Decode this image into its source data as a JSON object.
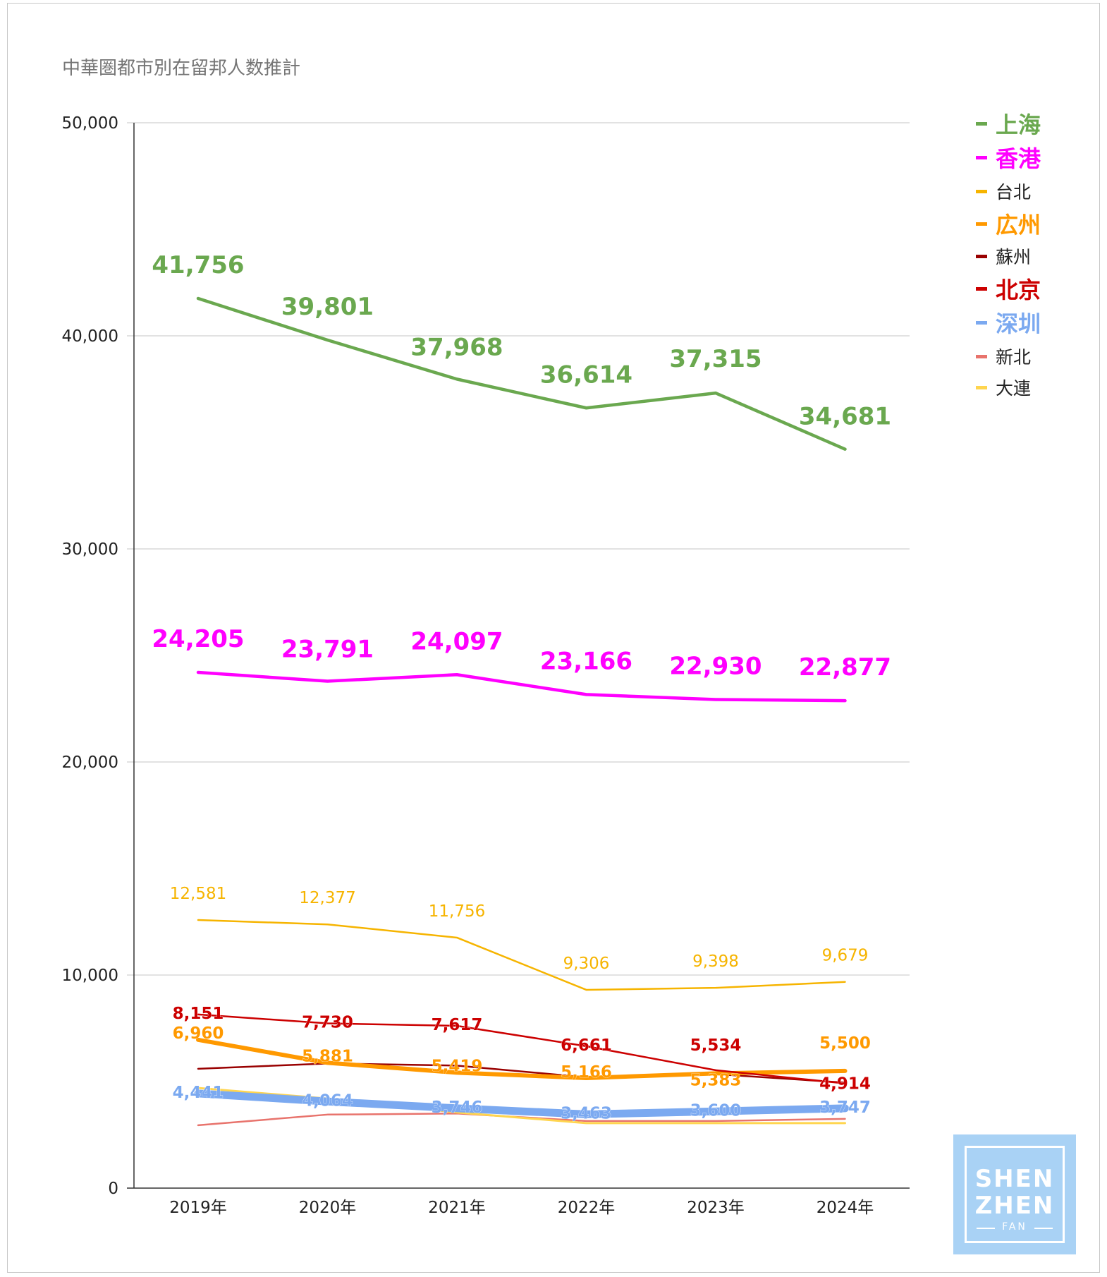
{
  "chart_data": {
    "type": "line",
    "title": "中華圏都市別在留邦人数推計",
    "categories": [
      "2019年",
      "2020年",
      "2021年",
      "2022年",
      "2023年",
      "2024年"
    ],
    "ylim": [
      0,
      50000
    ],
    "yticks": [
      0,
      10000,
      20000,
      30000,
      40000,
      50000
    ],
    "ytick_labels": [
      "0",
      "10,000",
      "20,000",
      "30,000",
      "40,000",
      "50,000"
    ],
    "grid": true,
    "legend_position": "right",
    "series": [
      {
        "name": "上海",
        "color": "#6aa84f",
        "values": [
          41756,
          39801,
          37968,
          36614,
          37315,
          34681
        ],
        "labels": [
          "41,756",
          "39,801",
          "37,968",
          "36,614",
          "37,315",
          "34,681"
        ]
      },
      {
        "name": "香港",
        "color": "#ff00ff",
        "values": [
          24205,
          23791,
          24097,
          23166,
          22930,
          22877
        ],
        "labels": [
          "24,205",
          "23,791",
          "24,097",
          "23,166",
          "22,930",
          "22,877"
        ]
      },
      {
        "name": "台北",
        "color": "#f6b400",
        "values": [
          12581,
          12377,
          11756,
          9306,
          9398,
          9679
        ],
        "labels": [
          "12,581",
          "12,377",
          "11,756",
          "9,306",
          "9,398",
          "9,679"
        ]
      },
      {
        "name": "広州",
        "color": "#ff9900",
        "values": [
          6960,
          5881,
          5419,
          5166,
          5383,
          5500
        ],
        "labels": [
          "6,960",
          "5,881",
          "5,419",
          "5,166",
          "5,383",
          "5,500"
        ]
      },
      {
        "name": "蘇州",
        "color": "#990000",
        "values": [
          5600,
          5850,
          5750,
          5200,
          5350,
          4950
        ],
        "labels": []
      },
      {
        "name": "北京",
        "color": "#cc0000",
        "values": [
          8151,
          7730,
          7617,
          6661,
          5534,
          4914
        ],
        "labels": [
          "8,151",
          "7,730",
          "7,617",
          "6,661",
          "5,534",
          "4,914"
        ]
      },
      {
        "name": "深圳",
        "color": "#7ba9f0",
        "values": [
          4441,
          4064,
          3746,
          3463,
          3600,
          3747
        ],
        "labels": [
          "4,441",
          "4,064",
          "3,746",
          "3,463",
          "3,600",
          "3,747"
        ]
      },
      {
        "name": "新北",
        "color": "#e8736c",
        "values": [
          2950,
          3450,
          3500,
          3150,
          3150,
          3250
        ],
        "labels": []
      },
      {
        "name": "大連",
        "color": "#ffd54f",
        "values": [
          4700,
          4200,
          3550,
          3050,
          3050,
          3050
        ],
        "labels": []
      }
    ]
  },
  "logo": {
    "line1": "SHEN",
    "line2": "ZHEN",
    "line3": "FAN"
  }
}
